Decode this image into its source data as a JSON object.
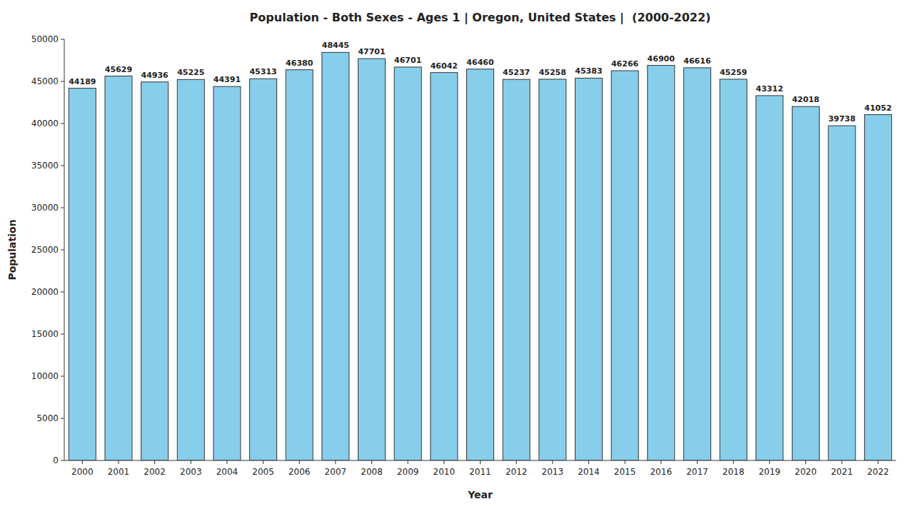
{
  "chart_data": {
    "type": "bar",
    "title": "Population - Both Sexes - Ages 1 | Oregon, United States |  (2000-2022)",
    "x_label": "Year",
    "y_label": "Population",
    "categories": [
      "2000",
      "2001",
      "2002",
      "2003",
      "2004",
      "2005",
      "2006",
      "2007",
      "2008",
      "2009",
      "2010",
      "2011",
      "2012",
      "2013",
      "2014",
      "2015",
      "2016",
      "2017",
      "2018",
      "2019",
      "2020",
      "2021",
      "2022"
    ],
    "values": [
      44189,
      45629,
      44936,
      45225,
      44391,
      45313,
      46380,
      48445,
      47701,
      46701,
      46042,
      46460,
      45237,
      45258,
      45383,
      46266,
      46900,
      46616,
      45259,
      43312,
      42018,
      39738,
      41052
    ],
    "color": "#87ceeb",
    "ylim": [
      0,
      50000
    ],
    "yticks": [
      0,
      5000,
      10000,
      15000,
      20000,
      25000,
      30000,
      35000,
      40000,
      45000,
      50000
    ],
    "grid": false,
    "data_labels": true
  }
}
